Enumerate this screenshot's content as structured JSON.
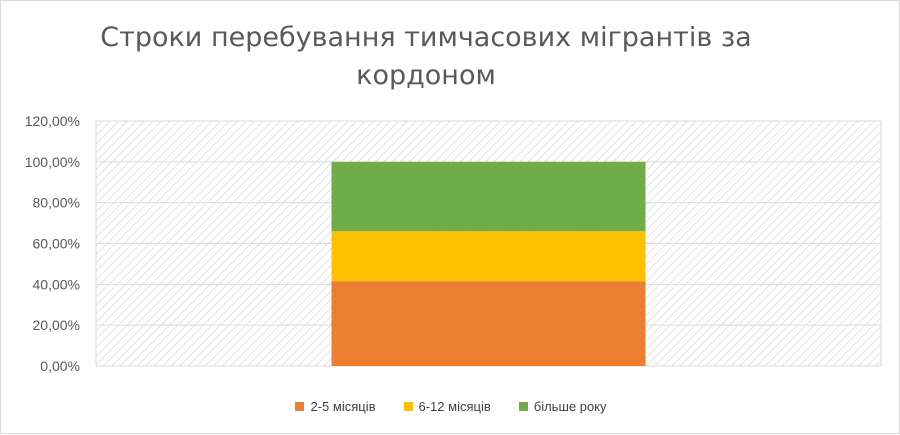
{
  "chart_data": {
    "type": "bar",
    "stacked": true,
    "title": "Строки перебування тимчасових мігрантів за кордоном",
    "categories": [
      ""
    ],
    "series": [
      {
        "name": "2-5 місяців",
        "values": [
          41.5
        ],
        "color": "#ED7D31"
      },
      {
        "name": "6-12 місяців",
        "values": [
          24.5
        ],
        "color": "#FFC000"
      },
      {
        "name": "більше року",
        "values": [
          34.0
        ],
        "color": "#70AD47"
      }
    ],
    "ylim": [
      0,
      120
    ],
    "yticks": [
      "0,00%",
      "20,00%",
      "40,00%",
      "60,00%",
      "80,00%",
      "100,00%",
      "120,00%"
    ],
    "grid": true,
    "plot_area_pattern": "diagonal-hatch",
    "legend_position": "bottom"
  }
}
